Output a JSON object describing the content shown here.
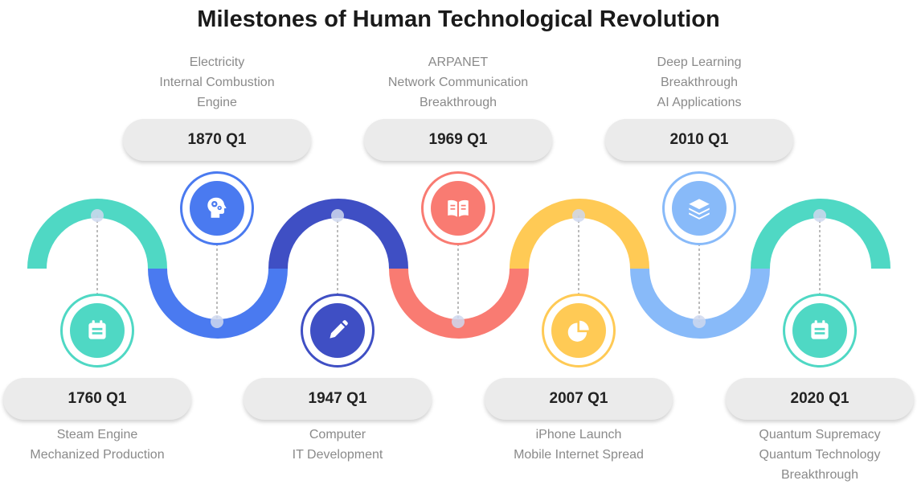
{
  "title": "Milestones of Human Technological Revolution",
  "colors": {
    "teal": "#4fd8c4",
    "blue": "#4a7af0",
    "indigo": "#3f4fc4",
    "coral": "#f97b72",
    "yellow": "#ffca55",
    "light_blue": "#88baf9"
  },
  "milestones": [
    {
      "date": "1760 Q1",
      "lines": [
        "Steam Engine",
        "Mechanized Production"
      ],
      "icon": "calendar-icon"
    },
    {
      "date": "1870 Q1",
      "lines": [
        "Electricity",
        "Internal Combustion",
        "Engine"
      ],
      "icon": "brain-gear-icon"
    },
    {
      "date": "1947 Q1",
      "lines": [
        "Computer",
        "IT Development"
      ],
      "icon": "pencil-icon"
    },
    {
      "date": "1969 Q1",
      "lines": [
        "ARPANET",
        "Network Communication",
        "Breakthrough"
      ],
      "icon": "book-icon"
    },
    {
      "date": "2007 Q1",
      "lines": [
        "iPhone Launch",
        "Mobile Internet Spread"
      ],
      "icon": "pie-chart-icon"
    },
    {
      "date": "2010 Q1",
      "lines": [
        "Deep Learning",
        "Breakthrough",
        "AI Applications"
      ],
      "icon": "layers-icon"
    },
    {
      "date": "2020 Q1",
      "lines": [
        "Quantum Supremacy",
        "Quantum Technology",
        "Breakthrough"
      ],
      "icon": "calendar-icon"
    }
  ]
}
